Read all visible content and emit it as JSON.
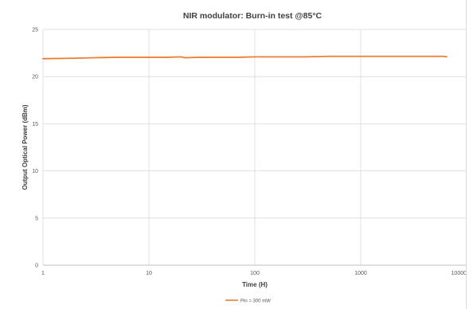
{
  "chart_data": {
    "type": "line",
    "title": "NIR modulator: Burn-in test @85°C",
    "xlabel": "Time (H)",
    "ylabel": "Output Optical Power (dBm)",
    "xscale": "log",
    "xlim": [
      1,
      10000
    ],
    "ylim": [
      0,
      25
    ],
    "x_ticks": [
      1,
      10,
      100,
      1000,
      10000
    ],
    "x_tick_labels": [
      "1",
      "10",
      "100",
      "1000",
      "10000"
    ],
    "y_ticks": [
      0,
      5,
      10,
      15,
      20,
      25
    ],
    "y_tick_labels": [
      "0",
      "5",
      "10",
      "15",
      "20",
      "25"
    ],
    "grid": true,
    "legend": "bottom",
    "series": [
      {
        "name": "Pin = 300 mW",
        "color": "#ed7d31",
        "x": [
          1,
          2,
          3,
          5,
          7,
          10,
          15,
          20,
          22,
          30,
          50,
          70,
          100,
          150,
          200,
          300,
          500,
          700,
          1000,
          1500,
          2000,
          3000,
          4000,
          5000,
          6000,
          6500
        ],
        "y": [
          21.9,
          21.95,
          22.0,
          22.05,
          22.05,
          22.05,
          22.05,
          22.1,
          22.0,
          22.05,
          22.05,
          22.05,
          22.1,
          22.1,
          22.1,
          22.1,
          22.15,
          22.15,
          22.15,
          22.15,
          22.15,
          22.15,
          22.15,
          22.15,
          22.15,
          22.1
        ]
      }
    ]
  }
}
